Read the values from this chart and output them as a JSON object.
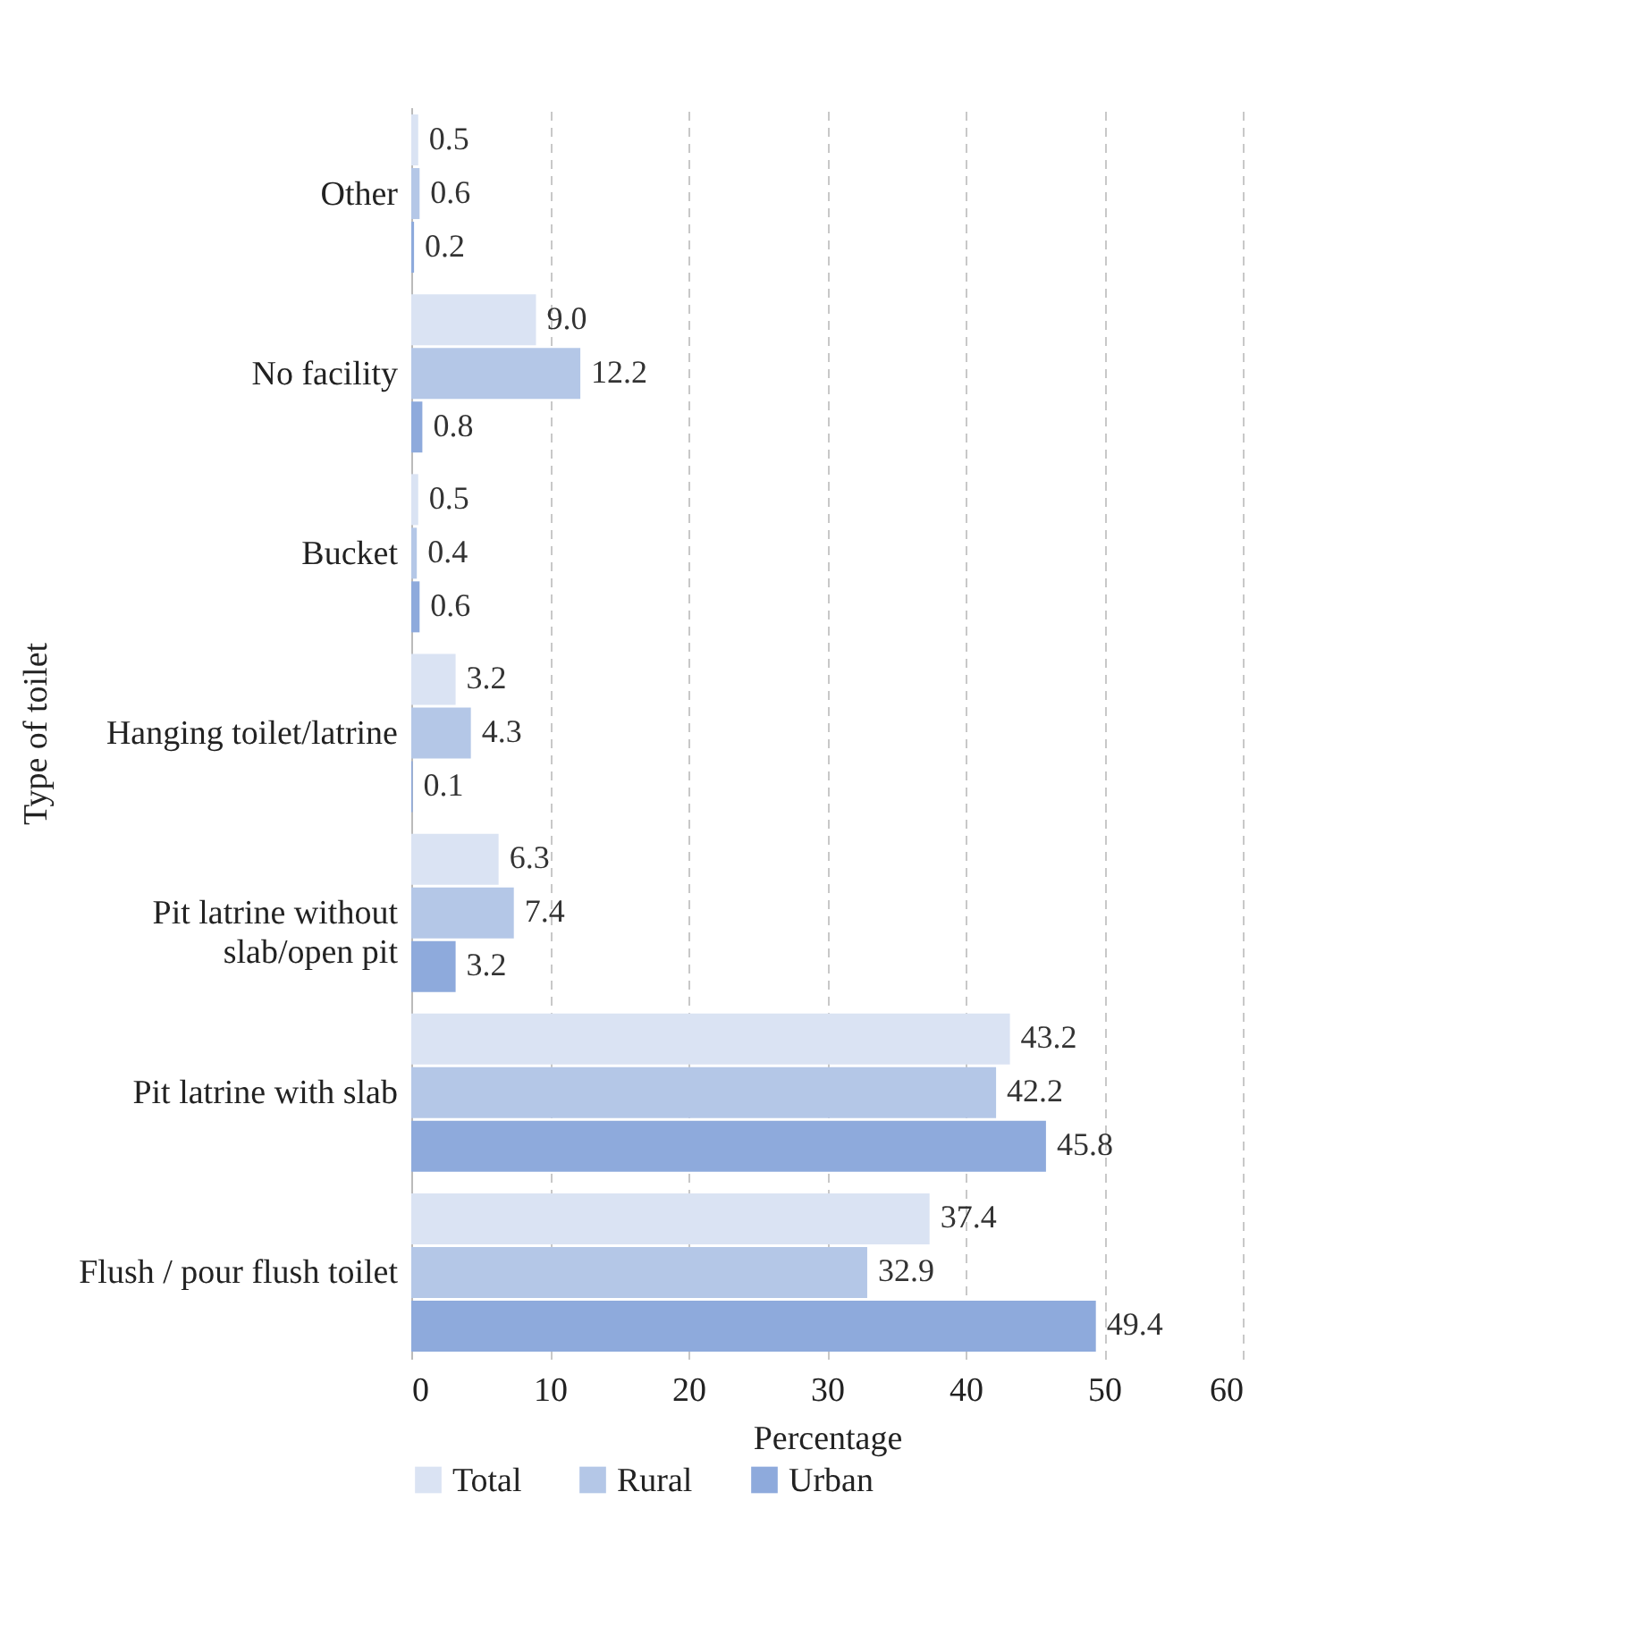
{
  "chart_data": {
    "type": "bar",
    "orientation": "horizontal",
    "xlabel": "Percentage",
    "ylabel": "Type of toilet",
    "categories": [
      "Other",
      "No facility",
      "Bucket",
      "Hanging toilet/latrine",
      "Pit latrine without slab/open pit",
      "Pit latrine with slab",
      "Flush / pour flush toilet"
    ],
    "series": [
      {
        "name": "Total",
        "color": "#dae3f3",
        "values": [
          0.5,
          9.0,
          0.5,
          3.2,
          6.3,
          43.2,
          37.4
        ],
        "value_labels": [
          "0.5",
          "9.0",
          "0.5",
          "3.2",
          "6.3",
          "43.2",
          "37.4"
        ]
      },
      {
        "name": "Rural",
        "color": "#b4c7e7",
        "values": [
          0.6,
          12.2,
          0.4,
          4.3,
          7.4,
          42.2,
          32.9
        ],
        "value_labels": [
          "0.6",
          "12.2",
          "0.4",
          "4.3",
          "7.4",
          "42.2",
          "32.9"
        ]
      },
      {
        "name": "Urban",
        "color": "#8eaadc",
        "values": [
          0.2,
          0.8,
          0.6,
          0.1,
          3.2,
          45.8,
          49.4
        ],
        "value_labels": [
          "0.2",
          "0.8",
          "0.6",
          "0.1",
          "3.2",
          "45.8",
          "49.4"
        ]
      }
    ],
    "xlim": [
      0,
      60
    ],
    "xticks": [
      0,
      10,
      20,
      30,
      40,
      50,
      60
    ],
    "grid": "x",
    "legend": "bottom left"
  }
}
